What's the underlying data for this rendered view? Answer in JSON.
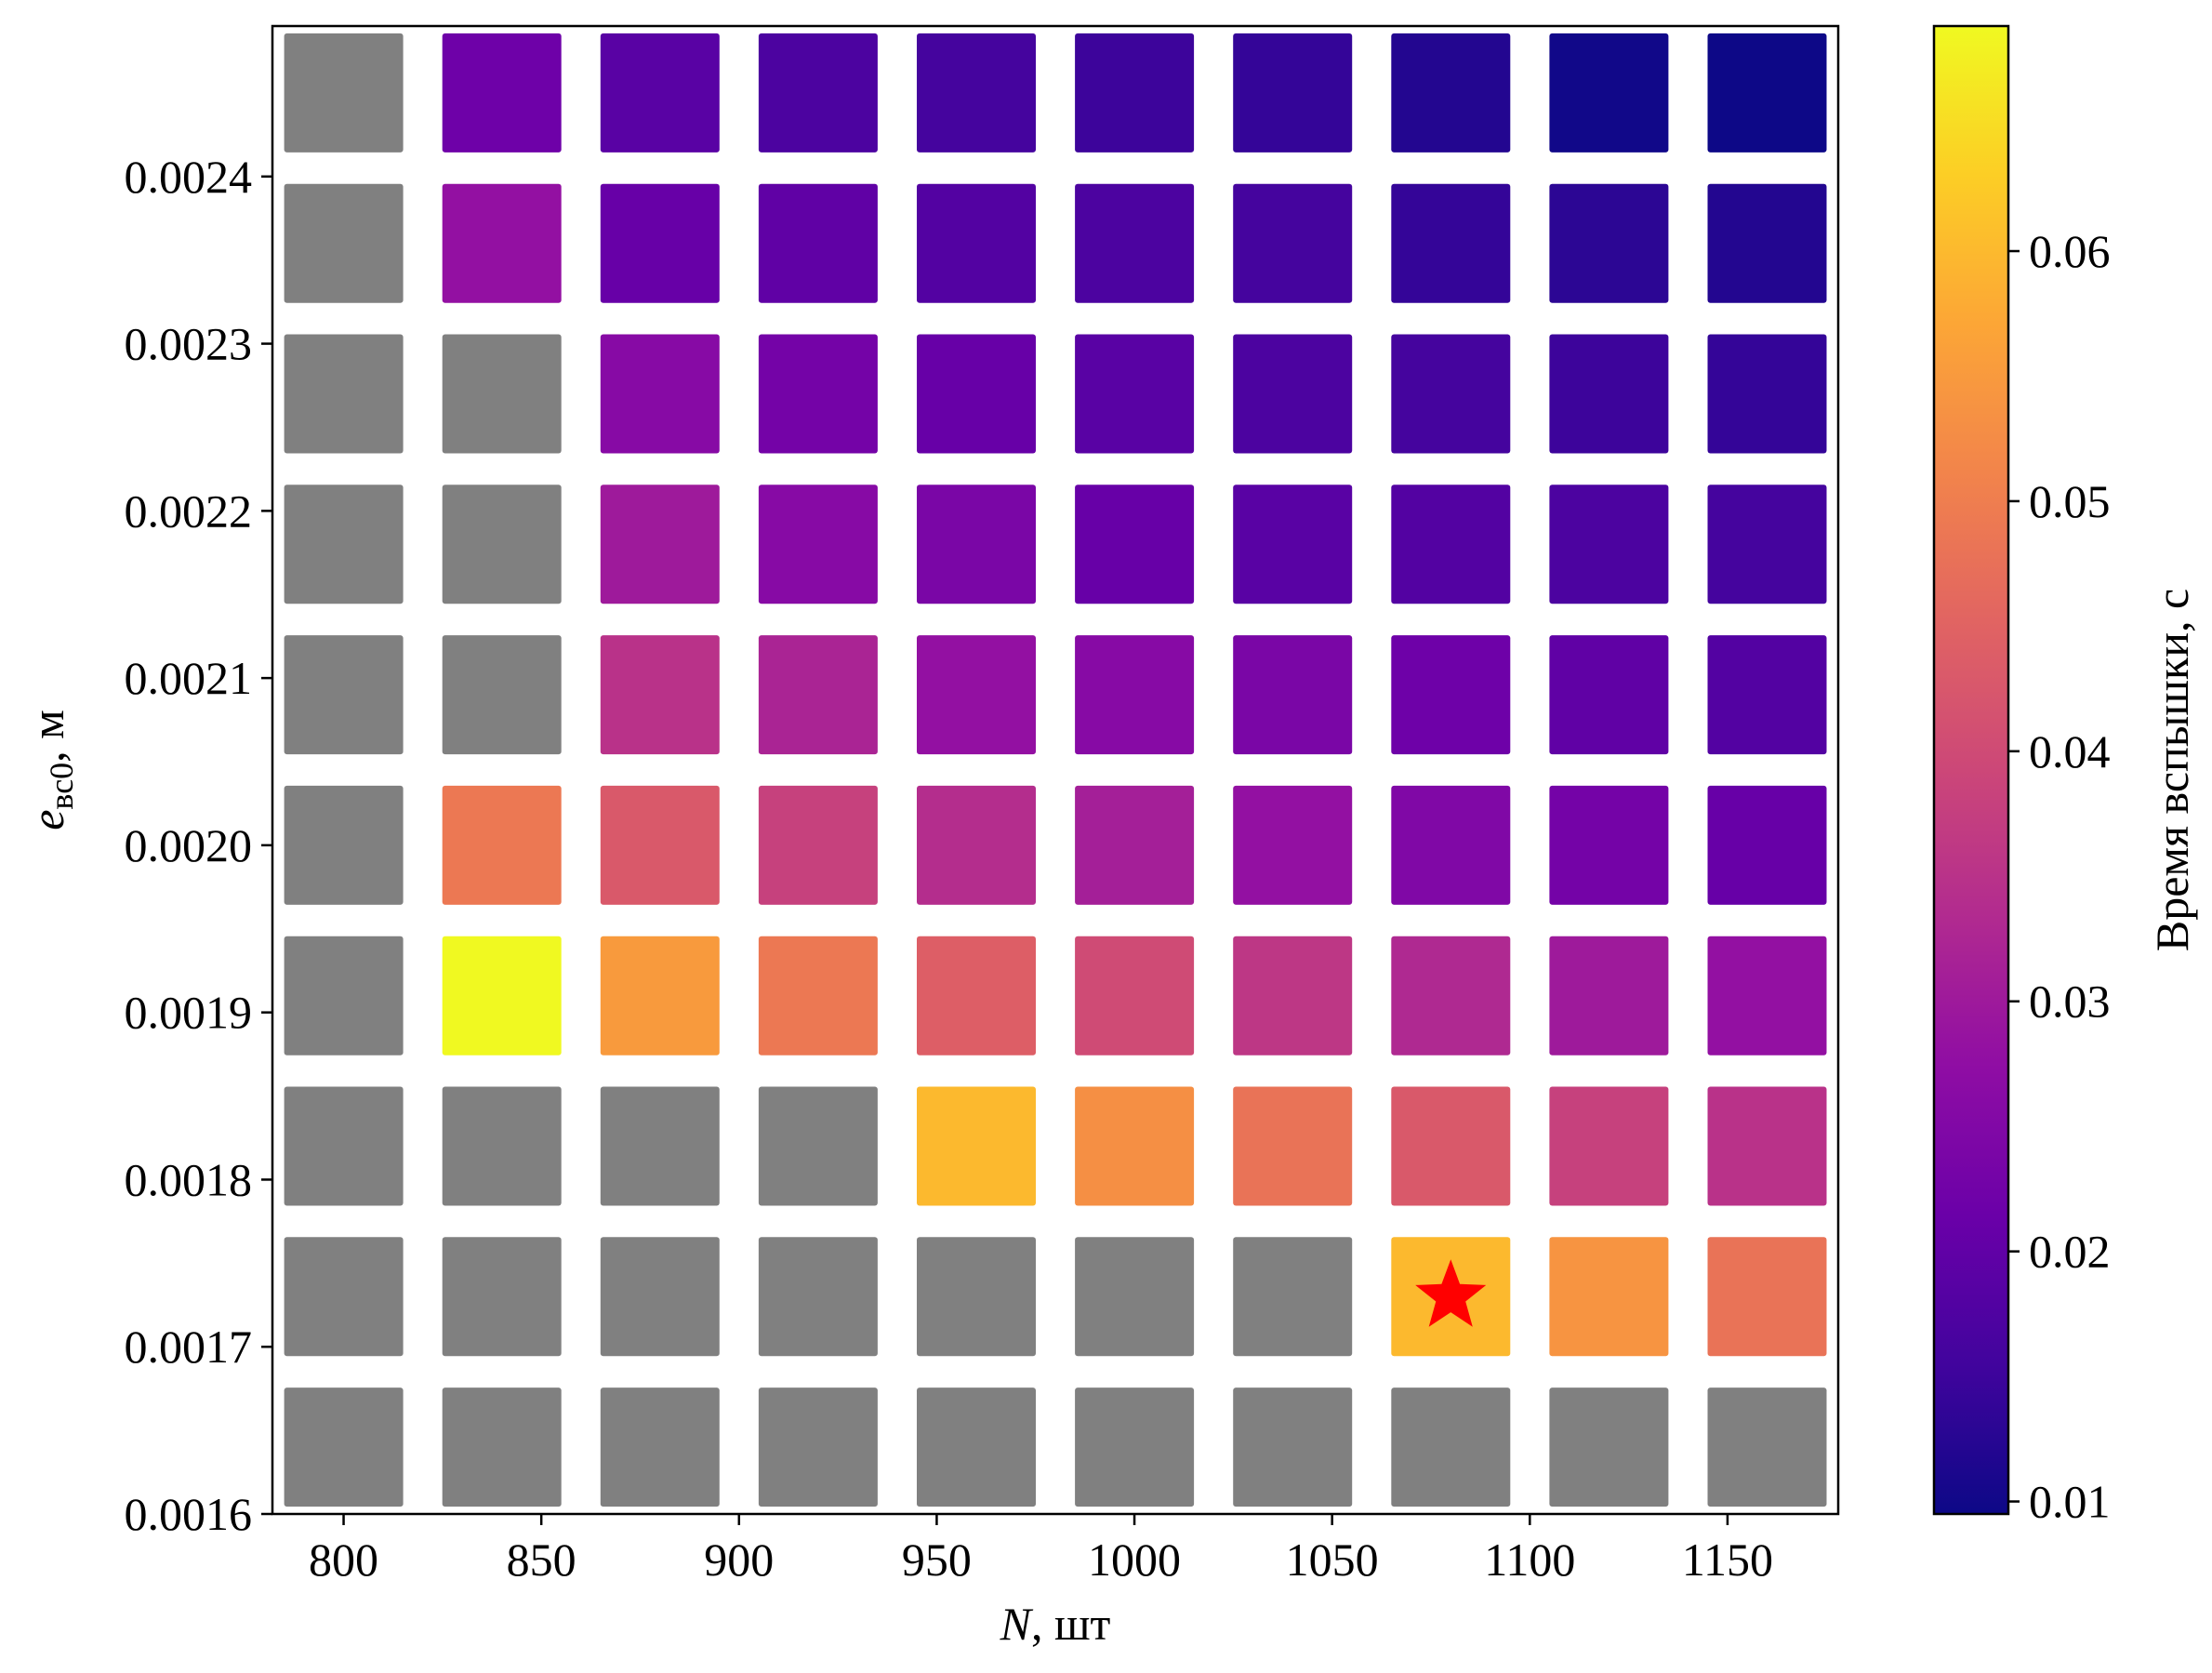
{
  "chart_data": {
    "type": "heatmap",
    "title": "",
    "xlabel_var": "N",
    "xlabel_unit": ", шт",
    "ylabel_var": "e",
    "ylabel_sub": "вс0",
    "ylabel_unit": ", м",
    "x_values": [
      800,
      850,
      900,
      950,
      1000,
      1050,
      1100,
      1150
    ],
    "x_cells": [
      800,
      840,
      880,
      920,
      960,
      1000,
      1040,
      1080,
      1120,
      1160
    ],
    "x_ticks": [
      "800",
      "850",
      "900",
      "950",
      "1000",
      "1050",
      "1100",
      "1150"
    ],
    "xlim": [
      782,
      1178
    ],
    "y_ticks": [
      "0.0016",
      "0.0017",
      "0.0018",
      "0.0019",
      "0.0020",
      "0.0021",
      "0.0022",
      "0.0023",
      "0.0024"
    ],
    "y_tick_values": [
      0.0016,
      0.0017,
      0.0018,
      0.0019,
      0.002,
      0.0021,
      0.0022,
      0.0023,
      0.0024
    ],
    "y_cells": [
      0.00164,
      0.00173,
      0.00182,
      0.00191,
      0.002,
      0.00209,
      0.00218,
      0.00227,
      0.00236,
      0.00245
    ],
    "ylim": [
      0.0016,
      0.00249
    ],
    "colorbar": {
      "label": "Время вспышки, с",
      "colormap": "plasma",
      "range": [
        0.0095,
        0.069
      ],
      "ticks": [
        "0.01",
        "0.02",
        "0.03",
        "0.04",
        "0.05",
        "0.06"
      ],
      "tick_values": [
        0.01,
        0.02,
        0.03,
        0.04,
        0.05,
        0.06
      ]
    },
    "na_color": "#808080",
    "marker": {
      "shape": "star",
      "color": "#ff0000",
      "x": 1080,
      "y": 0.00173
    },
    "values": [
      [
        null,
        null,
        null,
        null,
        null,
        null,
        null,
        null,
        null,
        null
      ],
      [
        null,
        null,
        null,
        null,
        null,
        null,
        null,
        0.06,
        0.054,
        0.048
      ],
      [
        null,
        null,
        null,
        null,
        0.06,
        0.053,
        0.048,
        0.043,
        0.038,
        0.035
      ],
      [
        null,
        0.069,
        0.055,
        0.049,
        0.044,
        0.04,
        0.036,
        0.033,
        0.03,
        0.028
      ],
      [
        null,
        0.049,
        0.043,
        0.038,
        0.034,
        0.031,
        0.028,
        0.025,
        0.023,
        0.021
      ],
      [
        null,
        null,
        0.035,
        0.032,
        0.028,
        0.026,
        0.024,
        0.022,
        0.02,
        0.018
      ],
      [
        null,
        null,
        0.03,
        0.026,
        0.024,
        0.021,
        0.019,
        0.018,
        0.017,
        0.016
      ],
      [
        null,
        null,
        0.026,
        0.023,
        0.021,
        0.019,
        0.017,
        0.016,
        0.015,
        0.014
      ],
      [
        null,
        0.028,
        0.021,
        0.02,
        0.018,
        0.017,
        0.016,
        0.014,
        0.013,
        0.012
      ],
      [
        null,
        0.022,
        0.019,
        0.017,
        0.016,
        0.015,
        0.014,
        0.012,
        0.01,
        0.009
      ]
    ]
  }
}
